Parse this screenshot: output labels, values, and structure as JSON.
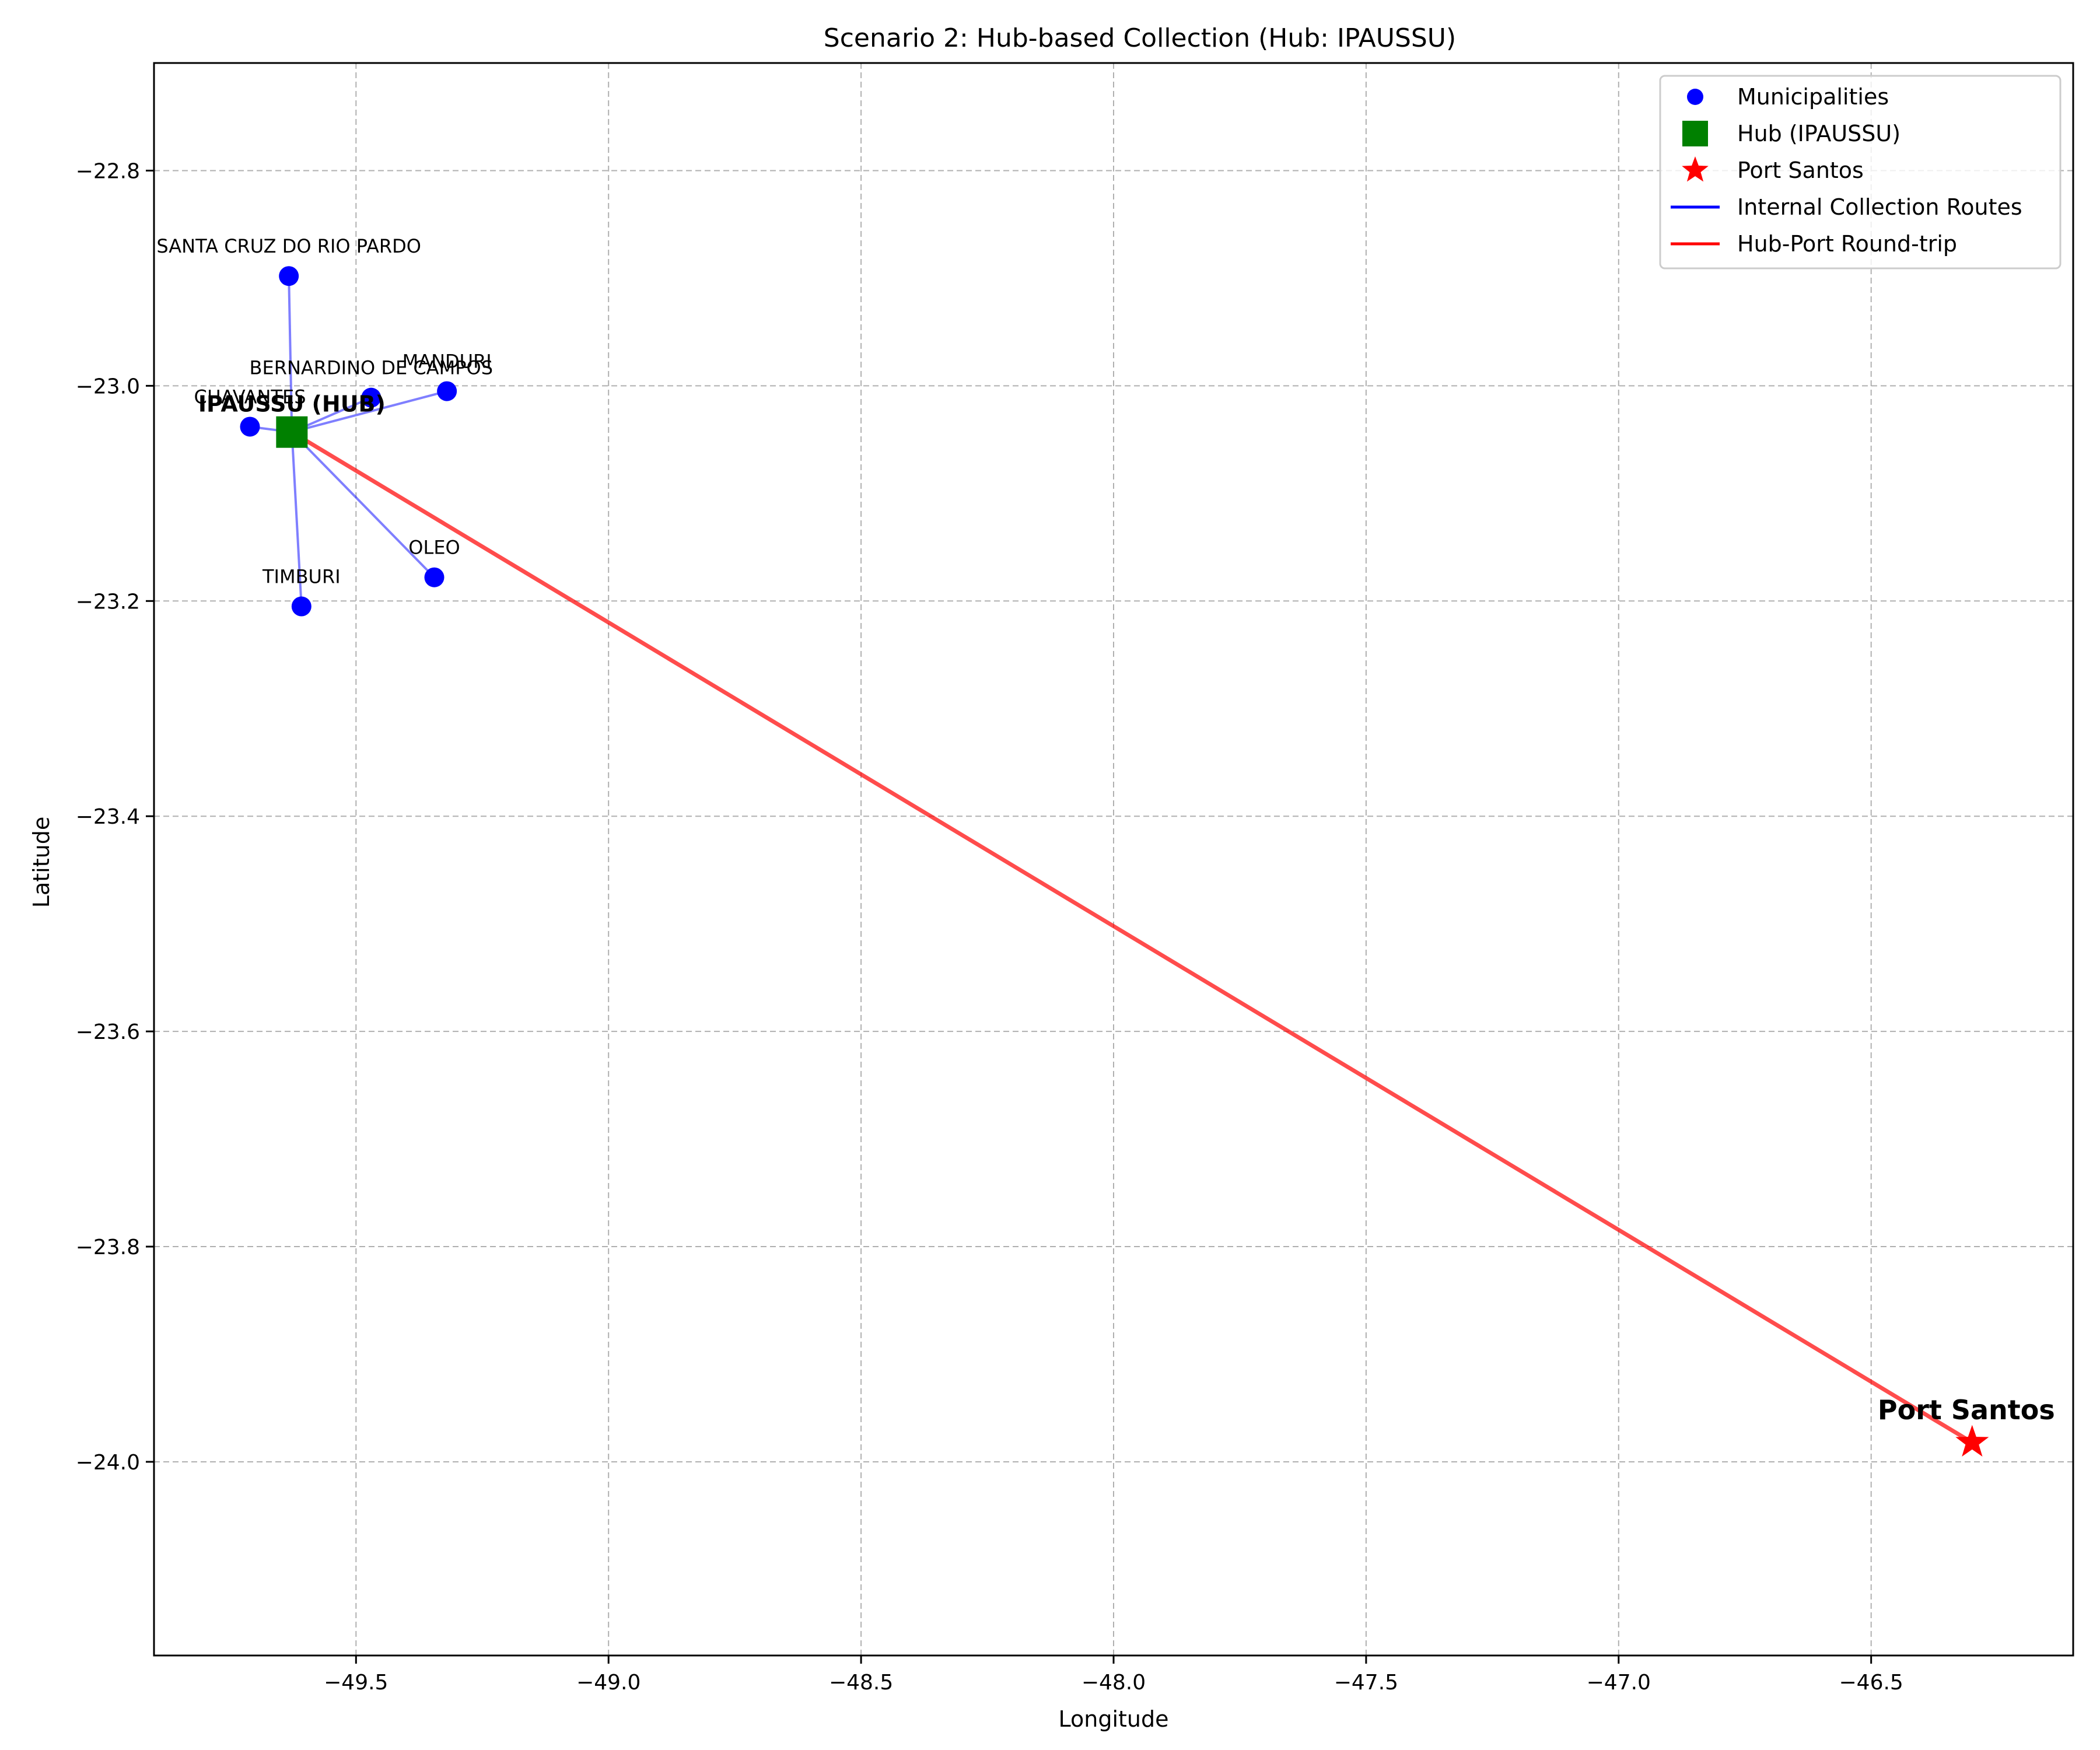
{
  "chart_data": {
    "type": "scatter",
    "title": "Scenario 2: Hub-based Collection (Hub: IPAUSSU)",
    "xlabel": "Longitude",
    "ylabel": "Latitude",
    "xlim": [
      -49.9,
      -46.1
    ],
    "ylim": [
      -24.18,
      -22.7
    ],
    "xticks": [
      -49.5,
      -49.0,
      -48.5,
      -48.0,
      -47.5,
      -47.0,
      -46.5
    ],
    "yticks": [
      -22.8,
      -23.0,
      -23.2,
      -23.4,
      -23.6,
      -23.8,
      -24.0
    ],
    "xtick_labels": [
      "−49.5",
      "−49.0",
      "−48.5",
      "−48.0",
      "−47.5",
      "−47.0",
      "−46.5"
    ],
    "ytick_labels": [
      "−22.8",
      "−23.0",
      "−23.2",
      "−23.4",
      "−23.6",
      "−23.8",
      "−24.0"
    ],
    "grid": true,
    "legend_position": "top-right",
    "legend": [
      {
        "label": "Municipalities",
        "marker": "circle",
        "color": "#0000ff"
      },
      {
        "label": "Hub (IPAUSSU)",
        "marker": "square",
        "color": "#008000"
      },
      {
        "label": "Port Santos",
        "marker": "star",
        "color": "#ff0000"
      },
      {
        "label": "Internal Collection Routes",
        "marker": "line",
        "color": "#0000ff"
      },
      {
        "label": "Hub-Port Round-trip",
        "marker": "line",
        "color": "#ff0000"
      }
    ],
    "municipalities": [
      {
        "name": "SANTA CRUZ DO RIO PARDO",
        "x": -49.633,
        "y": -22.898
      },
      {
        "name": "BERNARDINO DE CAMPOS",
        "x": -49.47,
        "y": -23.011
      },
      {
        "name": "MANDURI",
        "x": -49.32,
        "y": -23.005
      },
      {
        "name": "CHAVANTES",
        "x": -49.71,
        "y": -23.038
      },
      {
        "name": "OLEO",
        "x": -49.345,
        "y": -23.178
      },
      {
        "name": "TIMBURI",
        "x": -49.608,
        "y": -23.205
      }
    ],
    "hub": {
      "name": "IPAUSSU (HUB)",
      "x": -49.627,
      "y": -23.043
    },
    "port": {
      "name": "Port Santos",
      "x": -46.3,
      "y": -23.982
    },
    "colors": {
      "municipality": "#0000ff",
      "hub": "#008000",
      "port": "#ff0000",
      "internal_route": "#0000ff",
      "port_route": "#ff0000",
      "grid": "#b0b0b0"
    }
  }
}
